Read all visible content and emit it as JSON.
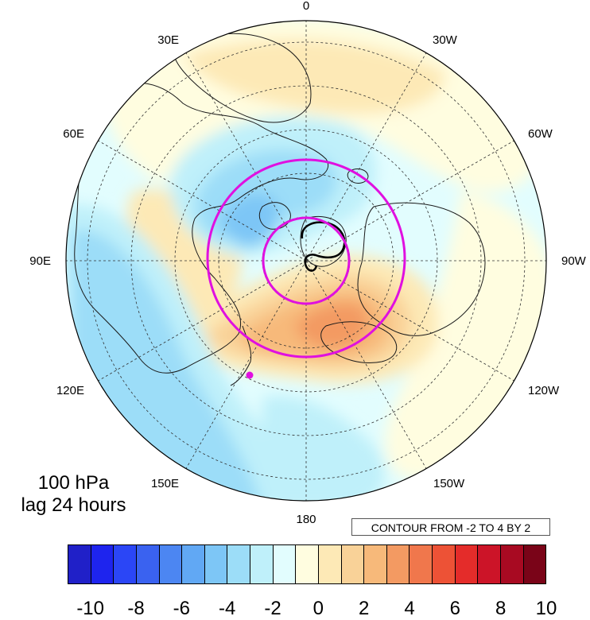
{
  "panel": {
    "level_label": "100 hPa",
    "lag_label": "lag 24 hours",
    "contour_label": "CONTOUR FROM -2 TO 4 BY 2"
  },
  "map": {
    "projection": "north-polar-stereographic",
    "longitude_labels": [
      "0",
      "30W",
      "60W",
      "90W",
      "120W",
      "150W",
      "180",
      "150E",
      "120E",
      "90E",
      "60E",
      "30E"
    ],
    "graticule": "dashed",
    "colors": {
      "highlight_circles": "#e010e0",
      "contour_line": "#000000",
      "coastlines": "#1a1a1a"
    }
  },
  "colorbar": {
    "labels": [
      "-10",
      "-8",
      "-6",
      "-4",
      "-2",
      "0",
      "2",
      "4",
      "6",
      "8",
      "10"
    ],
    "colors": [
      "#2020c8",
      "#1e24ee",
      "#2b46f6",
      "#3a62f0",
      "#4c86f2",
      "#61a8f4",
      "#7dc6f6",
      "#9cddf8",
      "#bff0fa",
      "#e2fdfe",
      "#fffde0",
      "#fde9b6",
      "#f9d298",
      "#f7b97a",
      "#f39a62",
      "#f0774c",
      "#ed5236",
      "#e42c2a",
      "#cc1428",
      "#a80a22",
      "#7a0418"
    ]
  }
}
